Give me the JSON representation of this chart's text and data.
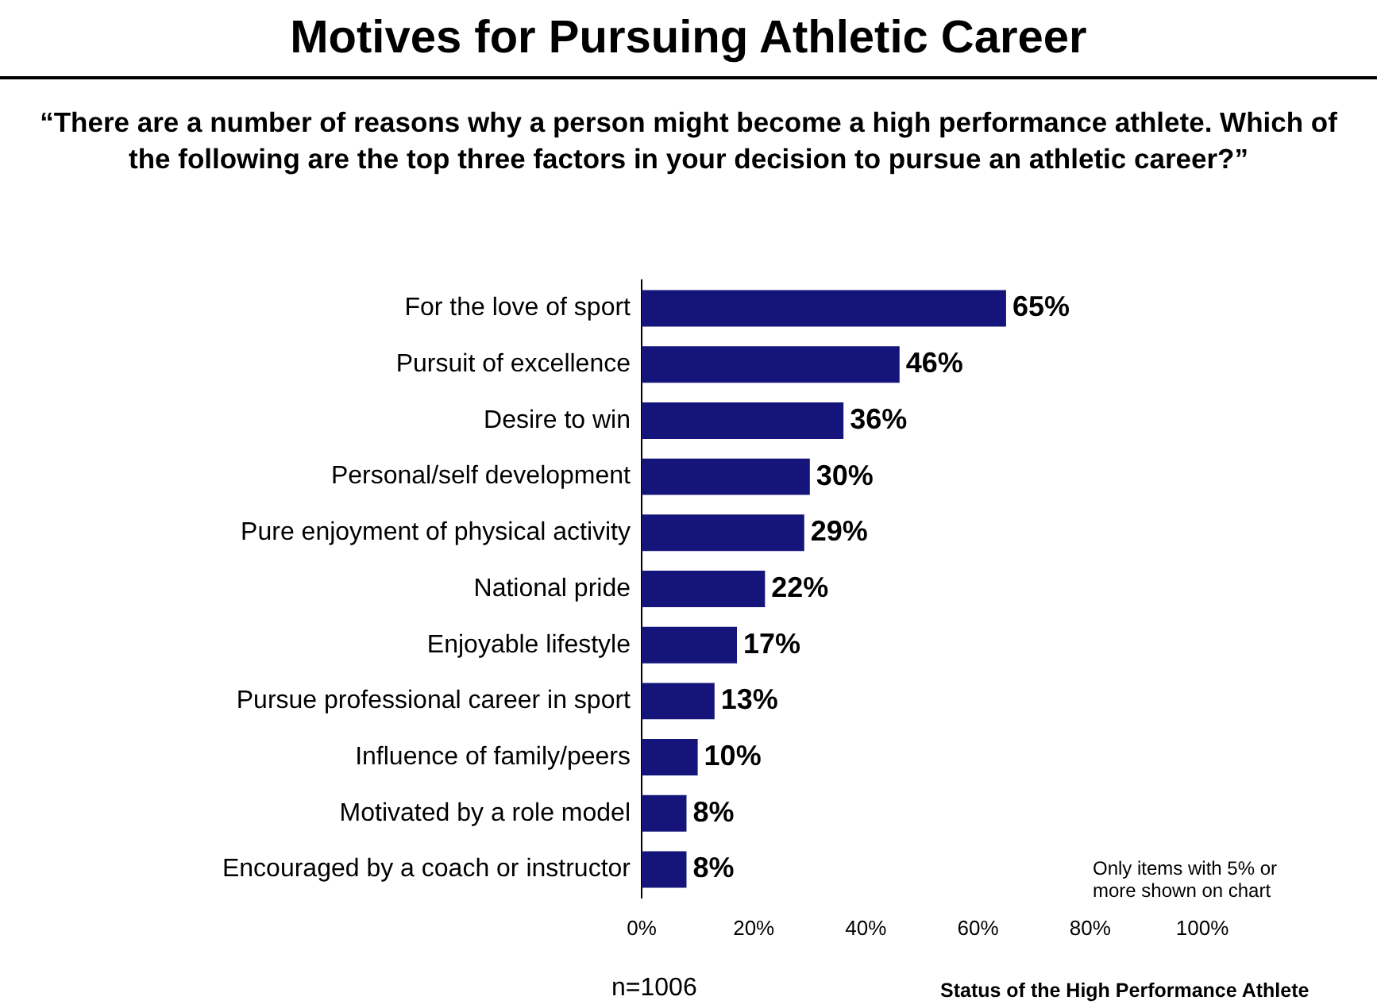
{
  "chart_data": {
    "type": "bar",
    "orientation": "horizontal",
    "title": "Motives for Pursuing Athletic Career",
    "subtitle": "“There are a number of reasons why a person might become a high performance athlete. Which of the following are the top three factors in your decision to pursue an athletic career?”",
    "categories": [
      "For the love of sport",
      "Pursuit of excellence",
      "Desire to win",
      "Personal/self development",
      "Pure enjoyment of physical activity",
      "National pride",
      "Enjoyable lifestyle",
      "Pursue professional career in sport",
      "Influence of family/peers",
      "Motivated by a role model",
      "Encouraged by a coach or instructor"
    ],
    "values": [
      65,
      46,
      36,
      30,
      29,
      22,
      17,
      13,
      10,
      8,
      8
    ],
    "value_labels": [
      "65%",
      "46%",
      "36%",
      "30%",
      "29%",
      "22%",
      "17%",
      "13%",
      "10%",
      "8%",
      "8%"
    ],
    "color": "#14147a",
    "xlim": [
      0,
      100
    ],
    "xticks": [
      {
        "value": 0,
        "label": "0%"
      },
      {
        "value": 20,
        "label": "20%"
      },
      {
        "value": 40,
        "label": "40%"
      },
      {
        "value": 60,
        "label": "60%"
      },
      {
        "value": 80,
        "label": "80%"
      },
      {
        "value": 100,
        "label": "100%"
      }
    ],
    "grid": false,
    "legend": false,
    "annotations": [
      "Only items with 5% or more shown on chart",
      "n=1006",
      "Status of the High Performance Athlete"
    ]
  }
}
